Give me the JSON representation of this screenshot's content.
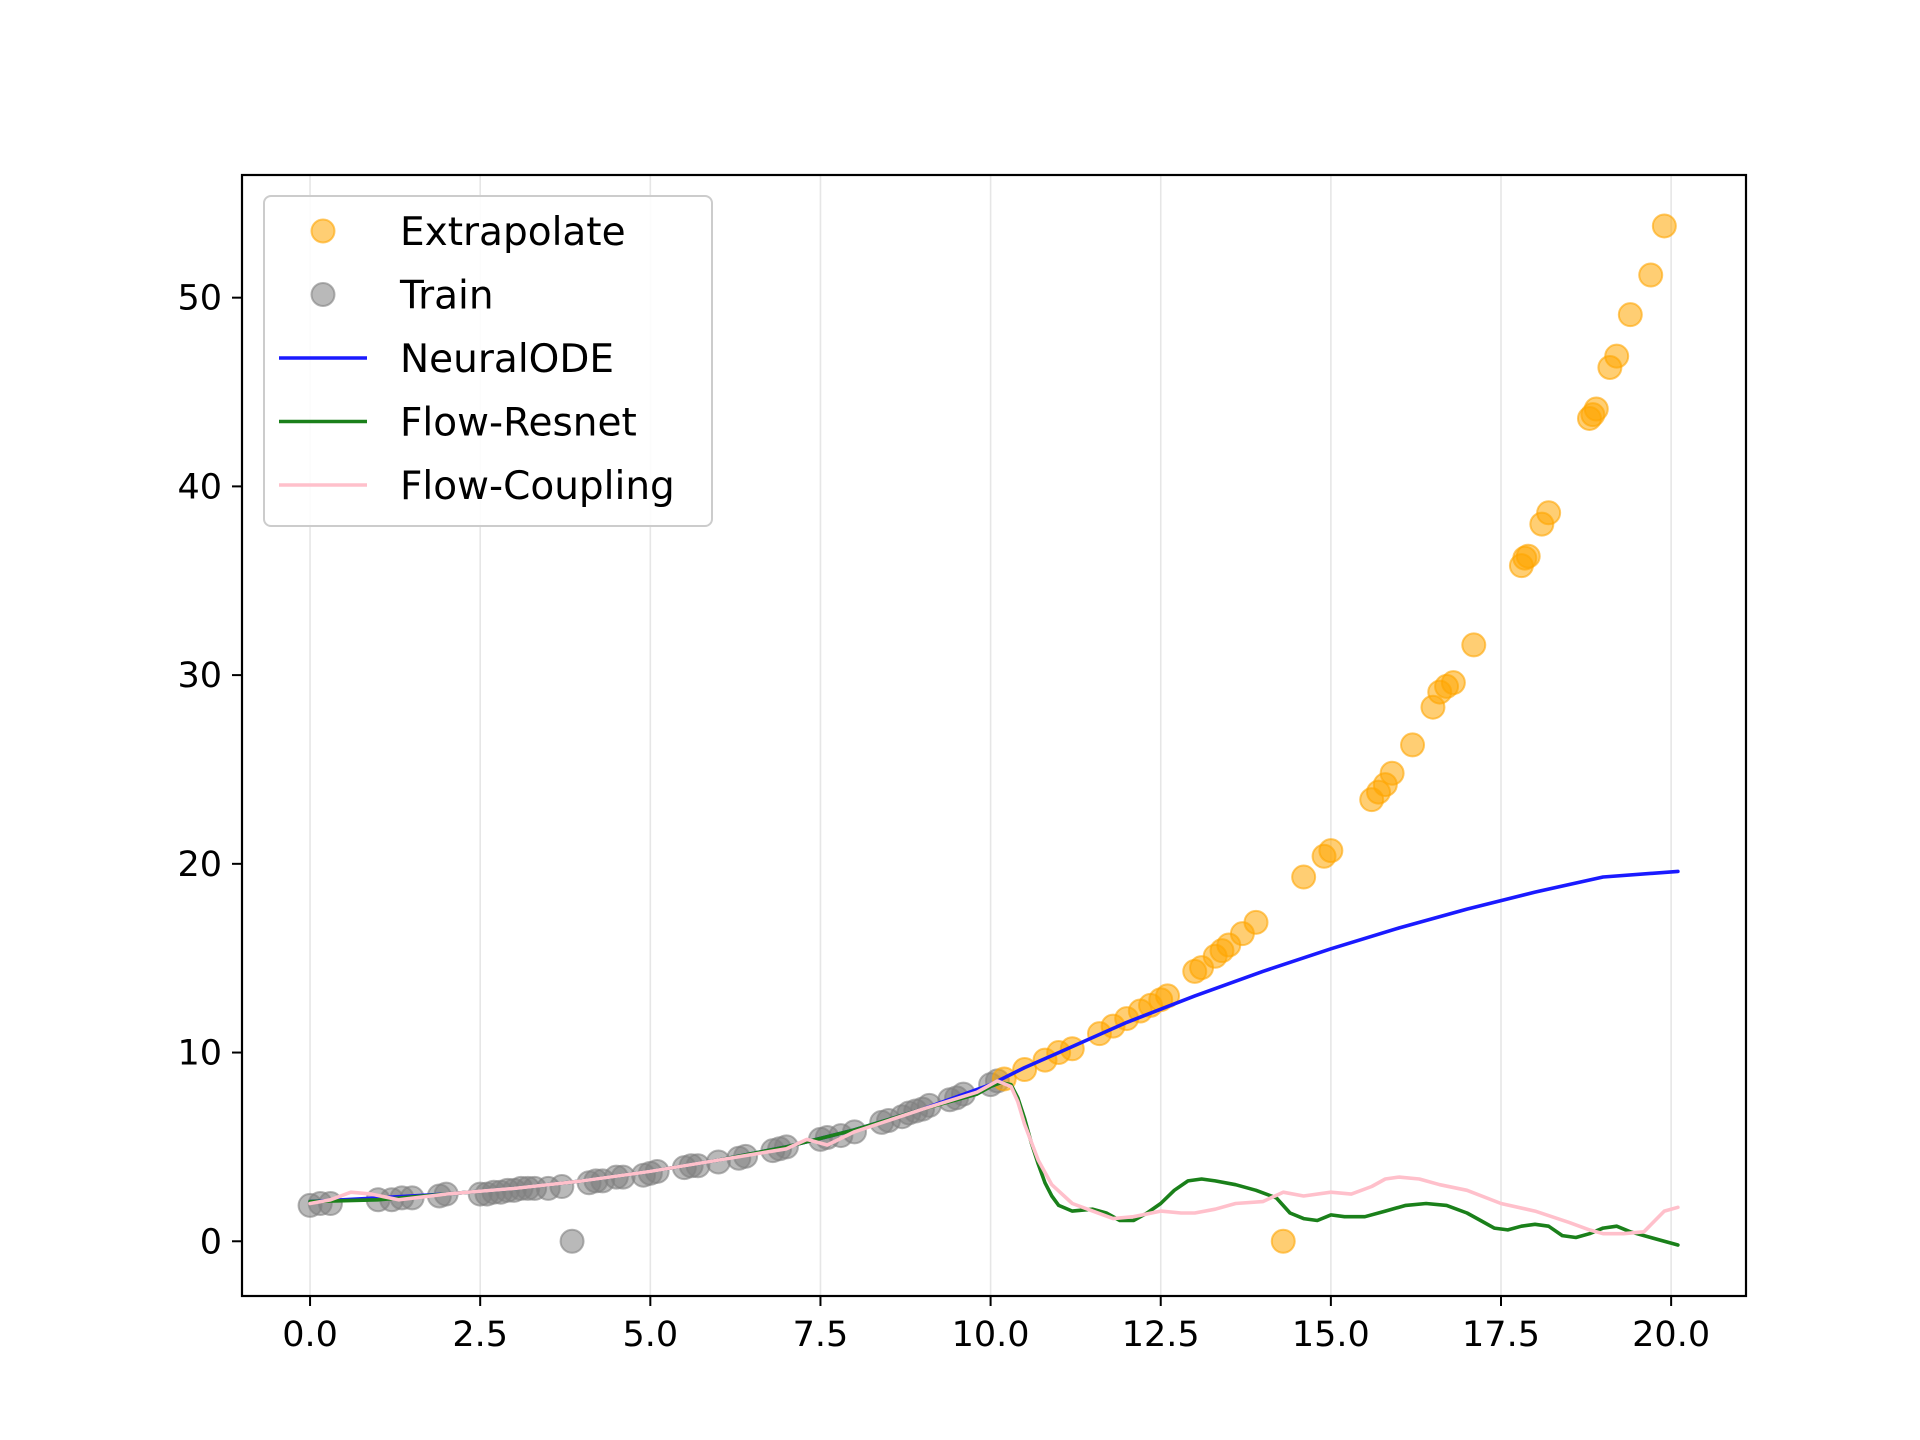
{
  "chart_data": {
    "type": "scatter",
    "title": "",
    "xlabel": "",
    "ylabel": "",
    "xlim": [
      -1.0,
      21.1
    ],
    "ylim": [
      -2.9,
      56.5
    ],
    "xticks": [
      0.0,
      2.5,
      5.0,
      7.5,
      10.0,
      12.5,
      15.0,
      17.5,
      20.0
    ],
    "xtick_labels": [
      "0.0",
      "2.5",
      "5.0",
      "7.5",
      "10.0",
      "12.5",
      "15.0",
      "17.5",
      "20.0"
    ],
    "yticks": [
      0,
      10,
      20,
      30,
      40,
      50
    ],
    "ytick_labels": [
      "0",
      "10",
      "20",
      "30",
      "40",
      "50"
    ],
    "grid": "vertical",
    "legend_position": "top-left",
    "series": [
      {
        "name": "Extrapolate",
        "kind": "scatter",
        "color": "#FFA500",
        "points": [
          [
            10.2,
            8.6
          ],
          [
            10.5,
            9.1
          ],
          [
            10.8,
            9.6
          ],
          [
            11.0,
            10.0
          ],
          [
            11.2,
            10.2
          ],
          [
            11.6,
            11.0
          ],
          [
            11.8,
            11.4
          ],
          [
            12.0,
            11.8
          ],
          [
            12.2,
            12.2
          ],
          [
            12.35,
            12.5
          ],
          [
            12.5,
            12.8
          ],
          [
            12.6,
            13.0
          ],
          [
            13.0,
            14.3
          ],
          [
            13.1,
            14.5
          ],
          [
            13.3,
            15.1
          ],
          [
            13.4,
            15.4
          ],
          [
            13.5,
            15.7
          ],
          [
            13.7,
            16.3
          ],
          [
            13.9,
            16.9
          ],
          [
            14.3,
            0.0
          ],
          [
            14.6,
            19.3
          ],
          [
            14.9,
            20.4
          ],
          [
            15.0,
            20.7
          ],
          [
            15.6,
            23.4
          ],
          [
            15.7,
            23.8
          ],
          [
            15.8,
            24.2
          ],
          [
            15.9,
            24.8
          ],
          [
            16.2,
            26.3
          ],
          [
            16.5,
            28.3
          ],
          [
            16.6,
            29.1
          ],
          [
            16.7,
            29.4
          ],
          [
            16.8,
            29.6
          ],
          [
            17.1,
            31.6
          ],
          [
            17.8,
            35.8
          ],
          [
            17.85,
            36.2
          ],
          [
            17.9,
            36.3
          ],
          [
            18.1,
            38.0
          ],
          [
            18.2,
            38.6
          ],
          [
            18.8,
            43.6
          ],
          [
            18.85,
            43.8
          ],
          [
            18.9,
            44.1
          ],
          [
            19.1,
            46.3
          ],
          [
            19.2,
            46.9
          ],
          [
            19.4,
            49.1
          ],
          [
            19.7,
            51.2
          ],
          [
            19.9,
            53.8
          ]
        ]
      },
      {
        "name": "Train",
        "kind": "scatter",
        "color": "#808080",
        "points": [
          [
            0.0,
            1.9
          ],
          [
            0.15,
            2.0
          ],
          [
            0.3,
            2.0
          ],
          [
            1.0,
            2.2
          ],
          [
            1.2,
            2.2
          ],
          [
            1.35,
            2.3
          ],
          [
            1.5,
            2.3
          ],
          [
            1.9,
            2.4
          ],
          [
            2.0,
            2.5
          ],
          [
            2.5,
            2.5
          ],
          [
            2.6,
            2.5
          ],
          [
            2.7,
            2.6
          ],
          [
            2.8,
            2.6
          ],
          [
            2.9,
            2.7
          ],
          [
            3.0,
            2.7
          ],
          [
            3.1,
            2.8
          ],
          [
            3.2,
            2.8
          ],
          [
            3.3,
            2.8
          ],
          [
            3.5,
            2.8
          ],
          [
            3.7,
            2.9
          ],
          [
            3.85,
            0.0
          ],
          [
            4.1,
            3.1
          ],
          [
            4.2,
            3.2
          ],
          [
            4.3,
            3.2
          ],
          [
            4.5,
            3.4
          ],
          [
            4.6,
            3.4
          ],
          [
            4.9,
            3.5
          ],
          [
            5.0,
            3.6
          ],
          [
            5.1,
            3.7
          ],
          [
            5.5,
            3.9
          ],
          [
            5.6,
            4.0
          ],
          [
            5.7,
            4.0
          ],
          [
            6.0,
            4.2
          ],
          [
            6.3,
            4.4
          ],
          [
            6.4,
            4.5
          ],
          [
            6.8,
            4.8
          ],
          [
            6.9,
            4.9
          ],
          [
            7.0,
            5.0
          ],
          [
            7.5,
            5.4
          ],
          [
            7.6,
            5.5
          ],
          [
            7.8,
            5.6
          ],
          [
            8.0,
            5.8
          ],
          [
            8.4,
            6.3
          ],
          [
            8.5,
            6.4
          ],
          [
            8.7,
            6.6
          ],
          [
            8.8,
            6.8
          ],
          [
            8.9,
            6.9
          ],
          [
            9.0,
            7.0
          ],
          [
            9.1,
            7.2
          ],
          [
            9.4,
            7.5
          ],
          [
            9.5,
            7.6
          ],
          [
            9.6,
            7.8
          ],
          [
            10.0,
            8.3
          ],
          [
            10.1,
            8.5
          ]
        ]
      },
      {
        "name": "NeuralODE",
        "kind": "line",
        "color": "#1a1aff",
        "points": [
          [
            0.0,
            2.1
          ],
          [
            1.0,
            2.3
          ],
          [
            2.0,
            2.5
          ],
          [
            3.0,
            2.8
          ],
          [
            4.0,
            3.2
          ],
          [
            5.0,
            3.7
          ],
          [
            6.0,
            4.3
          ],
          [
            7.0,
            5.0
          ],
          [
            8.0,
            5.9
          ],
          [
            9.0,
            7.0
          ],
          [
            10.0,
            8.3
          ],
          [
            10.5,
            9.2
          ],
          [
            11.0,
            10.0
          ],
          [
            12.0,
            11.6
          ],
          [
            13.0,
            13.0
          ],
          [
            14.0,
            14.3
          ],
          [
            15.0,
            15.5
          ],
          [
            16.0,
            16.6
          ],
          [
            17.0,
            17.6
          ],
          [
            18.0,
            18.5
          ],
          [
            19.0,
            19.3
          ],
          [
            20.1,
            19.6
          ]
        ]
      },
      {
        "name": "Flow-Resnet",
        "kind": "line",
        "color": "#1a801a",
        "points": [
          [
            0.0,
            2.1
          ],
          [
            1.0,
            2.2
          ],
          [
            2.0,
            2.5
          ],
          [
            3.0,
            2.8
          ],
          [
            4.0,
            3.2
          ],
          [
            5.0,
            3.7
          ],
          [
            6.0,
            4.3
          ],
          [
            7.0,
            5.0
          ],
          [
            8.0,
            5.9
          ],
          [
            9.0,
            7.0
          ],
          [
            9.8,
            7.8
          ],
          [
            10.0,
            8.2
          ],
          [
            10.15,
            8.4
          ],
          [
            10.3,
            8.3
          ],
          [
            10.4,
            7.6
          ],
          [
            10.5,
            6.5
          ],
          [
            10.6,
            5.2
          ],
          [
            10.7,
            4.1
          ],
          [
            10.8,
            3.1
          ],
          [
            10.9,
            2.4
          ],
          [
            11.0,
            1.9
          ],
          [
            11.2,
            1.6
          ],
          [
            11.5,
            1.7
          ],
          [
            11.7,
            1.5
          ],
          [
            11.9,
            1.1
          ],
          [
            12.1,
            1.1
          ],
          [
            12.3,
            1.5
          ],
          [
            12.5,
            2.0
          ],
          [
            12.7,
            2.7
          ],
          [
            12.9,
            3.2
          ],
          [
            13.1,
            3.3
          ],
          [
            13.3,
            3.2
          ],
          [
            13.6,
            3.0
          ],
          [
            13.9,
            2.7
          ],
          [
            14.2,
            2.3
          ],
          [
            14.4,
            1.5
          ],
          [
            14.6,
            1.2
          ],
          [
            14.8,
            1.1
          ],
          [
            15.0,
            1.4
          ],
          [
            15.2,
            1.3
          ],
          [
            15.5,
            1.3
          ],
          [
            15.8,
            1.6
          ],
          [
            16.1,
            1.9
          ],
          [
            16.4,
            2.0
          ],
          [
            16.7,
            1.9
          ],
          [
            17.0,
            1.5
          ],
          [
            17.2,
            1.1
          ],
          [
            17.4,
            0.7
          ],
          [
            17.6,
            0.6
          ],
          [
            17.8,
            0.8
          ],
          [
            18.0,
            0.9
          ],
          [
            18.2,
            0.8
          ],
          [
            18.4,
            0.3
          ],
          [
            18.6,
            0.2
          ],
          [
            18.8,
            0.4
          ],
          [
            19.0,
            0.7
          ],
          [
            19.2,
            0.8
          ],
          [
            19.4,
            0.5
          ],
          [
            19.7,
            0.2
          ],
          [
            20.1,
            -0.2
          ]
        ]
      },
      {
        "name": "Flow-Coupling",
        "kind": "line",
        "color": "#ffc0cb",
        "points": [
          [
            0.0,
            2.0
          ],
          [
            0.3,
            2.2
          ],
          [
            0.6,
            2.6
          ],
          [
            0.9,
            2.5
          ],
          [
            1.3,
            2.2
          ],
          [
            2.0,
            2.5
          ],
          [
            3.0,
            2.8
          ],
          [
            4.0,
            3.2
          ],
          [
            5.0,
            3.7
          ],
          [
            6.0,
            4.3
          ],
          [
            7.0,
            4.9
          ],
          [
            7.3,
            5.4
          ],
          [
            7.6,
            5.1
          ],
          [
            8.0,
            5.8
          ],
          [
            9.0,
            7.0
          ],
          [
            9.8,
            7.9
          ],
          [
            10.1,
            8.5
          ],
          [
            10.3,
            8.2
          ],
          [
            10.4,
            7.4
          ],
          [
            10.5,
            6.2
          ],
          [
            10.7,
            4.3
          ],
          [
            10.9,
            3.0
          ],
          [
            11.2,
            2.0
          ],
          [
            11.5,
            1.6
          ],
          [
            11.8,
            1.2
          ],
          [
            12.1,
            1.3
          ],
          [
            12.5,
            1.6
          ],
          [
            12.8,
            1.5
          ],
          [
            13.0,
            1.5
          ],
          [
            13.3,
            1.7
          ],
          [
            13.6,
            2.0
          ],
          [
            14.0,
            2.1
          ],
          [
            14.3,
            2.6
          ],
          [
            14.6,
            2.4
          ],
          [
            15.0,
            2.6
          ],
          [
            15.3,
            2.5
          ],
          [
            15.6,
            2.9
          ],
          [
            15.8,
            3.3
          ],
          [
            16.0,
            3.4
          ],
          [
            16.3,
            3.3
          ],
          [
            16.6,
            3.0
          ],
          [
            17.0,
            2.7
          ],
          [
            17.5,
            2.0
          ],
          [
            18.0,
            1.6
          ],
          [
            18.5,
            1.0
          ],
          [
            18.8,
            0.6
          ],
          [
            19.0,
            0.4
          ],
          [
            19.3,
            0.4
          ],
          [
            19.6,
            0.5
          ],
          [
            19.9,
            1.6
          ],
          [
            20.1,
            1.8
          ]
        ]
      }
    ]
  }
}
